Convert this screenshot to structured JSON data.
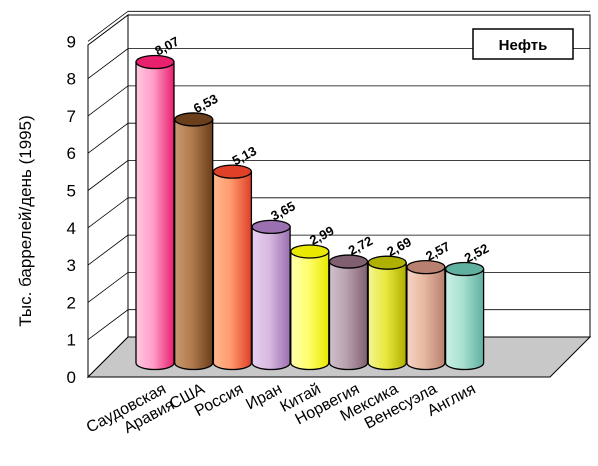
{
  "chart_data": {
    "type": "bar",
    "style": "3d-cylinder",
    "ylabel": "Тыс. баррелей/день (1995)",
    "ylim": [
      0,
      9
    ],
    "yticks": [
      0,
      1,
      2,
      3,
      4,
      5,
      6,
      7,
      8,
      9
    ],
    "grid": true,
    "legend_position": "top-right",
    "series": [
      {
        "name": "Нефть",
        "values": [
          8.07,
          6.53,
          5.13,
          3.65,
          2.99,
          2.72,
          2.69,
          2.57,
          2.52
        ],
        "value_labels": [
          "8,07",
          "6,53",
          "5,13",
          "3,65",
          "2,99",
          "2,72",
          "2,69",
          "2,57",
          "2,52"
        ]
      }
    ],
    "categories": [
      [
        "Саудовская",
        "Аравия"
      ],
      [
        "США"
      ],
      [
        "Россия"
      ],
      [
        "Иран"
      ],
      [
        "Китай"
      ],
      [
        "Норвегия"
      ],
      [
        "Мексика"
      ],
      [
        "Венесуэла"
      ],
      [
        "Англия"
      ]
    ],
    "colors": [
      [
        "#ff9ec8",
        "#e8206e",
        "#ffc8e0"
      ],
      [
        "#b07a4c",
        "#6b3e1c",
        "#c89a70"
      ],
      [
        "#ff9a6e",
        "#e04028",
        "#ffb890"
      ],
      [
        "#d8b8e0",
        "#9a70b0",
        "#e8d0f0"
      ],
      [
        "#ffff70",
        "#e8e800",
        "#ffffb0"
      ],
      [
        "#b8a0b0",
        "#806070",
        "#d0c0cc"
      ],
      [
        "#e8e840",
        "#b0b000",
        "#f4f490"
      ],
      [
        "#e8b8a0",
        "#b88070",
        "#f4d4c4"
      ],
      [
        "#a8e0d0",
        "#60b0a0",
        "#c8f0e4"
      ]
    ]
  }
}
